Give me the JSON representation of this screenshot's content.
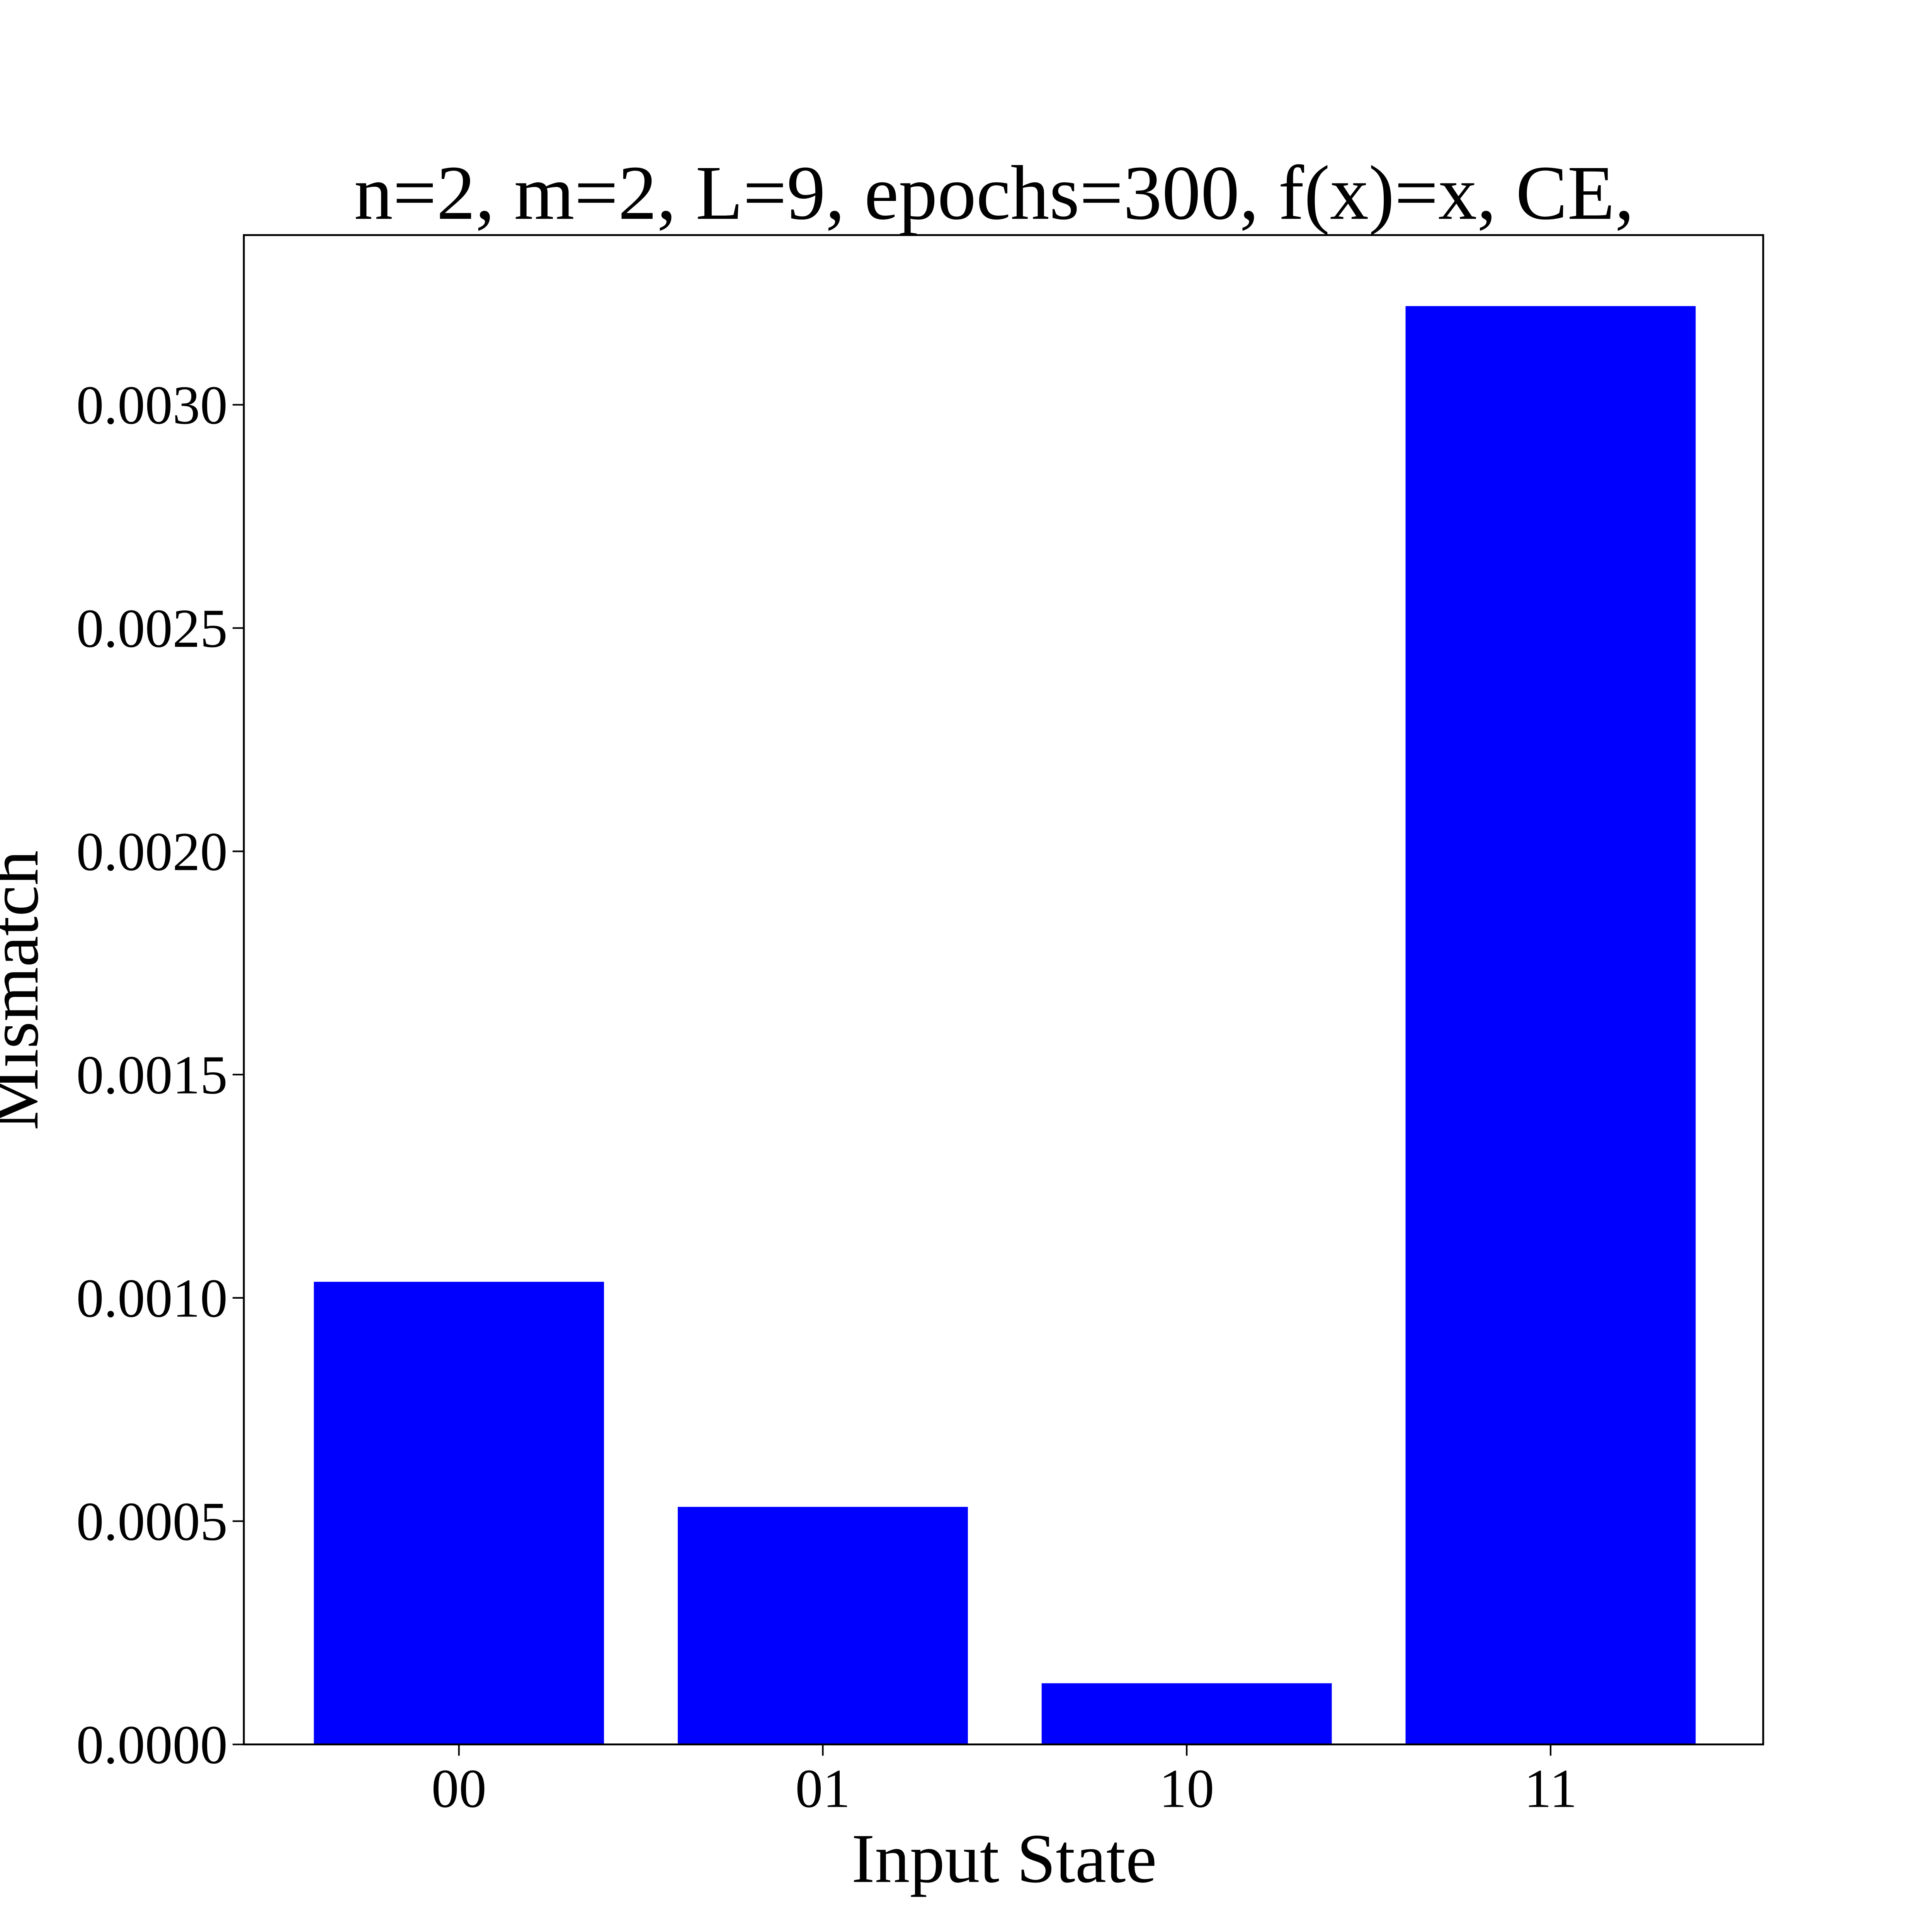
{
  "chart_data": {
    "type": "bar",
    "title": "n=2, m=2, L=9, epochs=300, f(x)=x, CE,",
    "x_label": "Input State",
    "y_label": "Mismatch",
    "categories": [
      "00",
      "01",
      "10",
      "11"
    ],
    "values": [
      0.001036,
      0.000532,
      0.000137,
      0.003221
    ],
    "color": "#0000ff",
    "ylim": [
      0,
      0.00338
    ],
    "yticks": [
      {
        "value": 0,
        "label": "0.0000"
      },
      {
        "value": 0.0005,
        "label": "0.0005"
      },
      {
        "value": 0.001,
        "label": "0.0010"
      },
      {
        "value": 0.0015,
        "label": "0.0015"
      },
      {
        "value": 0.002,
        "label": "0.0020"
      },
      {
        "value": 0.0025,
        "label": "0.0025"
      },
      {
        "value": 0.003,
        "label": "0.0030"
      }
    ],
    "grid": false
  }
}
